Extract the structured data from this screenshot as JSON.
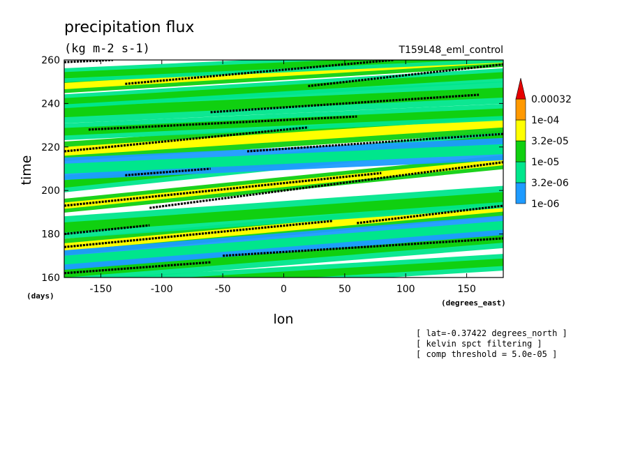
{
  "chart_data": {
    "type": "heatmap",
    "title": "precipitation flux",
    "units": "(kg m-2 s-1)",
    "run_label": "T159L48_eml_control",
    "xlabel": "lon",
    "xunits": "(degrees_east)",
    "ylabel": "time",
    "yunits": "(days)",
    "xlim": [
      -180,
      180
    ],
    "ylim": [
      160,
      260
    ],
    "xticks": [
      "-150",
      "-100",
      "-50",
      "0",
      "50",
      "100",
      "150"
    ],
    "xtick_values": [
      -150,
      -100,
      -50,
      0,
      50,
      100,
      150
    ],
    "yticks": [
      "160",
      "180",
      "200",
      "220",
      "240",
      "260"
    ],
    "ytick_values": [
      160,
      180,
      200,
      220,
      240,
      260
    ],
    "legend": {
      "levels": [
        "1e-06",
        "3.2e-06",
        "1e-05",
        "3.2e-05",
        "1e-04",
        "0.00032"
      ],
      "colors": [
        "#1e9bff",
        "#00e68c",
        "#10d010",
        "#ffff00",
        "#ff9900",
        "#e60000"
      ]
    },
    "notes": [
      "[ lat=-0.37422 degrees_north ]",
      "[ kelvin spct filtering ]",
      "[ comp threshold = 5.0e-05 ]"
    ],
    "kelvin_tracks": [
      {
        "x0": -180,
        "t0": 193,
        "x1": 80,
        "t1": 208
      },
      {
        "x0": -110,
        "t0": 192,
        "x1": 180,
        "t1": 213
      },
      {
        "x0": -180,
        "t0": 218,
        "x1": 20,
        "t1": 229
      },
      {
        "x0": -30,
        "t0": 218,
        "x1": 180,
        "t1": 226
      },
      {
        "x0": -180,
        "t0": 174,
        "x1": 40,
        "t1": 186
      },
      {
        "x0": -50,
        "t0": 170,
        "x1": 180,
        "t1": 178
      },
      {
        "x0": -180,
        "t0": 162,
        "x1": -60,
        "t1": 167
      },
      {
        "x0": -130,
        "t0": 249,
        "x1": 90,
        "t1": 260
      },
      {
        "x0": 20,
        "t0": 248,
        "x1": 180,
        "t1": 258
      },
      {
        "x0": -160,
        "t0": 228,
        "x1": 60,
        "t1": 234
      },
      {
        "x0": -60,
        "t0": 236,
        "x1": 160,
        "t1": 244
      },
      {
        "x0": -130,
        "t0": 207,
        "x1": -60,
        "t1": 210
      },
      {
        "x0": -180,
        "t0": 180,
        "x1": -110,
        "t1": 184
      },
      {
        "x0": 60,
        "t0": 185,
        "x1": 180,
        "t1": 193
      },
      {
        "x0": -180,
        "t0": 259,
        "x1": -140,
        "t1": 260
      }
    ],
    "precip_bands": [
      {
        "x0": -180,
        "t0": 193,
        "x1": 180,
        "t1": 213,
        "level": 3
      },
      {
        "x0": -180,
        "t0": 203,
        "x1": 180,
        "t1": 224,
        "level": 2
      },
      {
        "x0": -180,
        "t0": 218,
        "x1": 180,
        "t1": 231,
        "level": 3
      },
      {
        "x0": -180,
        "t0": 236,
        "x1": 180,
        "t1": 245,
        "level": 2
      },
      {
        "x0": -180,
        "t0": 248,
        "x1": 180,
        "t1": 260,
        "level": 3
      },
      {
        "x0": -180,
        "t0": 174,
        "x1": 180,
        "t1": 192,
        "level": 3
      },
      {
        "x0": -180,
        "t0": 162,
        "x1": 180,
        "t1": 178,
        "level": 2
      },
      {
        "x0": -180,
        "t0": 183,
        "x1": 180,
        "t1": 197,
        "level": 2
      },
      {
        "x0": -180,
        "t0": 241,
        "x1": 180,
        "t1": 253,
        "level": 2
      },
      {
        "x0": -180,
        "t0": 227,
        "x1": 180,
        "t1": 236,
        "level": 2
      },
      {
        "x0": -180,
        "t0": 168,
        "x1": 180,
        "t1": 184,
        "level": 1
      },
      {
        "x0": -180,
        "t0": 210,
        "x1": 180,
        "t1": 219,
        "level": 1
      },
      {
        "x0": -180,
        "t0": 253,
        "x1": 180,
        "t1": 262,
        "level": 2
      },
      {
        "x0": -180,
        "t0": 155,
        "x1": 180,
        "t1": 167,
        "level": 2
      }
    ]
  }
}
